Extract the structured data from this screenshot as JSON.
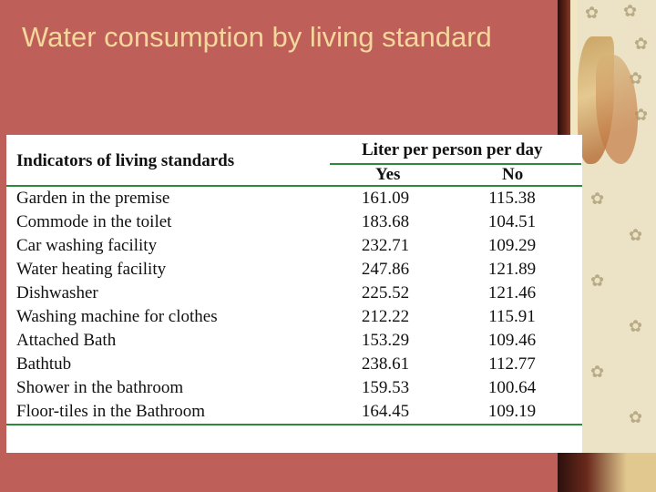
{
  "slide": {
    "title": "Water consumption by living standard"
  },
  "table": {
    "header_indicator": "Indicators of living standards",
    "header_group": "Liter per person per day",
    "header_yes": "Yes",
    "header_no": "No",
    "rows": [
      {
        "label": "Garden in the premise",
        "yes": "161.09",
        "no": "115.38"
      },
      {
        "label": "Commode in the toilet",
        "yes": "183.68",
        "no": "104.51"
      },
      {
        "label": "Car washing facility",
        "yes": "232.71",
        "no": "109.29"
      },
      {
        "label": "Water heating facility",
        "yes": "247.86",
        "no": "121.89"
      },
      {
        "label": "Dishwasher",
        "yes": "225.52",
        "no": "121.46"
      },
      {
        "label": "Washing machine for clothes",
        "yes": "212.22",
        "no": "115.91"
      },
      {
        "label": "Attached Bath",
        "yes": "153.29",
        "no": "109.46"
      },
      {
        "label": "Bathtub",
        "yes": "238.61",
        "no": "112.77"
      },
      {
        "label": "Shower in the bathroom",
        "yes": "159.53",
        "no": "100.64"
      },
      {
        "label": "Floor-tiles in the Bathroom",
        "yes": "164.45",
        "no": "109.19"
      }
    ]
  },
  "colors": {
    "background": "#bf5f5a",
    "title": "#f3d79b",
    "rule": "#2d8a3a"
  }
}
